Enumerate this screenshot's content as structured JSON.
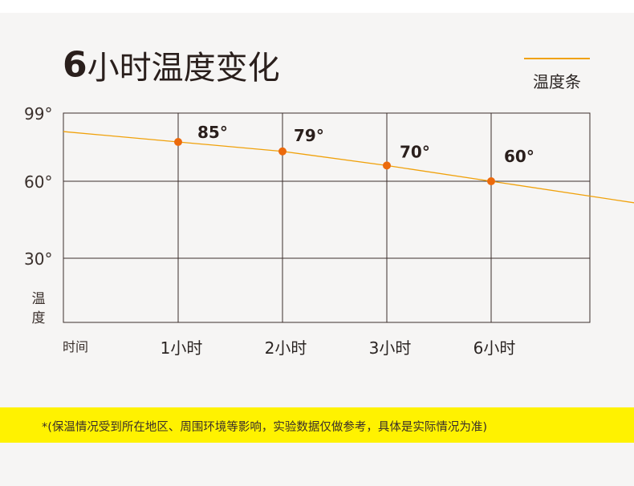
{
  "title": {
    "number": "6",
    "text": "小时温度变化"
  },
  "legend": {
    "label": "温度条",
    "color": "#f0a10a"
  },
  "chart_data": {
    "type": "line",
    "title": "6小时温度变化",
    "ylabel": "温度",
    "xlabel": "时间",
    "x_ticks": [
      "1小时",
      "2小时",
      "3小时",
      "6小时"
    ],
    "y_ticks": [
      "99°",
      "60°",
      "30°"
    ],
    "ylim": [
      0,
      99
    ],
    "series": [
      {
        "name": "温度条",
        "color": "#f0a10a",
        "points": [
          {
            "x": "1小时",
            "y": 85,
            "label": "85°"
          },
          {
            "x": "2小时",
            "y": 79,
            "label": "79°"
          },
          {
            "x": "3小时",
            "y": 70,
            "label": "70°"
          },
          {
            "x": "6小时",
            "y": 60,
            "label": "60°"
          }
        ]
      }
    ],
    "grid": true,
    "legend_position": "top-right"
  },
  "note": "*(保温情况受到所在地区、周围环境等影响，实验数据仅做参考，具体是实际情况为准)",
  "colors": {
    "background": "#f6f5f4",
    "grid": "#3c2f2c",
    "marker": "#ec6a0c",
    "note_band": "#fff200"
  }
}
